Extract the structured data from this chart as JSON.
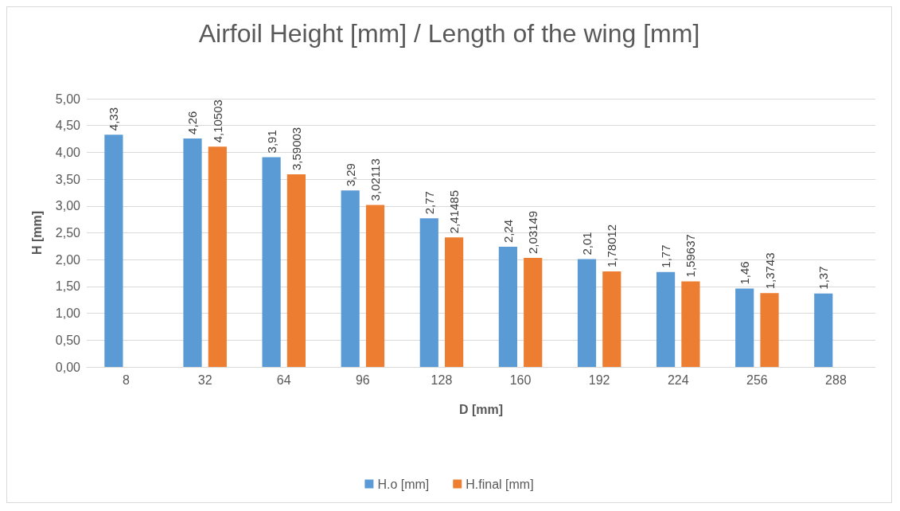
{
  "chart_data": {
    "type": "bar",
    "title": "Airfoil Height [mm] / Length of the wing [mm]",
    "xlabel": "D [mm]",
    "ylabel": "H [mm]",
    "categories": [
      "8",
      "32",
      "64",
      "96",
      "128",
      "160",
      "192",
      "224",
      "256",
      "288"
    ],
    "series": [
      {
        "name": "H.o [mm]",
        "color": "#5b9bd5",
        "values": [
          4.33,
          4.26,
          3.91,
          3.29,
          2.77,
          2.24,
          2.01,
          1.77,
          1.46,
          1.37
        ],
        "value_labels": [
          "4,33",
          "4,26",
          "3,91",
          "3,29",
          "2,77",
          "2,24",
          "2,01",
          "1,77",
          "1,46",
          "1,37"
        ]
      },
      {
        "name": "H.final [mm]",
        "color": "#ed7d31",
        "values": [
          null,
          4.10503,
          3.59003,
          3.02113,
          2.41485,
          2.03149,
          1.78012,
          1.59637,
          1.3743,
          null
        ],
        "value_labels": [
          null,
          "4,10503",
          "3,59003",
          "3,02113",
          "2,41485",
          "2,03149",
          "1,78012",
          "1,59637",
          "1,3743",
          null
        ]
      }
    ],
    "ylim": [
      0,
      5
    ],
    "yticks": [
      {
        "value": 0,
        "label": "0,00"
      },
      {
        "value": 0.5,
        "label": "0,50"
      },
      {
        "value": 1,
        "label": "1,00"
      },
      {
        "value": 1.5,
        "label": "1,50"
      },
      {
        "value": 2,
        "label": "2,00"
      },
      {
        "value": 2.5,
        "label": "2,50"
      },
      {
        "value": 3,
        "label": "3,00"
      },
      {
        "value": 3.5,
        "label": "3,50"
      },
      {
        "value": 4,
        "label": "4,00"
      },
      {
        "value": 4.5,
        "label": "4,50"
      },
      {
        "value": 5,
        "label": "5,00"
      }
    ],
    "grid": "y",
    "legend": "bottom"
  }
}
